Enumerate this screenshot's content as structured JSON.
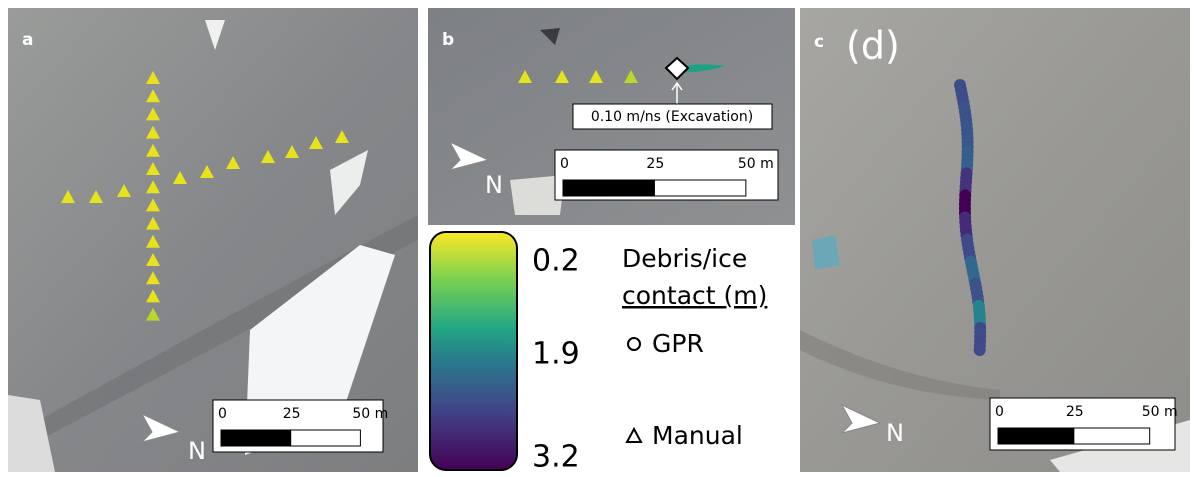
{
  "panels": [
    {
      "label": "a",
      "north": "N",
      "scale_bar": [
        "0",
        "25",
        "50 m"
      ]
    },
    {
      "label": "b",
      "north": "N",
      "scale_bar": [
        "0",
        "25",
        "50 m"
      ],
      "callout": "0.10 m/ns (Excavation)"
    },
    {
      "label": "c",
      "sublabel": "(d)",
      "north": "N",
      "scale_bar": [
        "0",
        "25",
        "50 m"
      ]
    }
  ],
  "legend": {
    "colorbar_labels": [
      "0.2",
      "1.9",
      "3.2"
    ],
    "title_line1": "Debris/ice",
    "title_line2": "contact (m)",
    "gpr": "GPR",
    "manual": "Manual"
  }
}
